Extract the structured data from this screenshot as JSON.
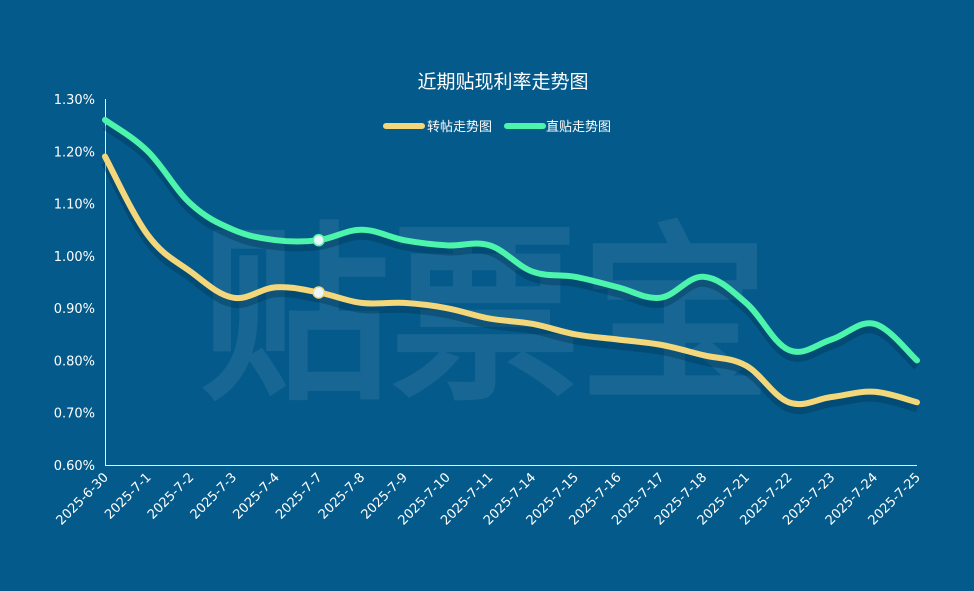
{
  "colors": {
    "background": "#045a8a",
    "transfer_line": "#f4d77a",
    "direct_line": "#4cf5ab",
    "axis_text": "#ffffff"
  },
  "watermark": "贴票宝",
  "chart_data": {
    "type": "line",
    "title": "近期贴现利率走势图",
    "xlabel": "",
    "ylabel": "",
    "ylim": [
      0.6,
      1.3
    ],
    "y_ticks": [
      "0.60%",
      "0.70%",
      "0.80%",
      "0.90%",
      "1.00%",
      "1.10%",
      "1.20%",
      "1.30%"
    ],
    "y_tick_values": [
      0.6,
      0.7,
      0.8,
      0.9,
      1.0,
      1.1,
      1.2,
      1.3
    ],
    "grid": false,
    "legend_position": "top-center",
    "categories": [
      "2025-6-30",
      "2025-7-1",
      "2025-7-2",
      "2025-7-3",
      "2025-7-4",
      "2025-7-7",
      "2025-7-8",
      "2025-7-9",
      "2025-7-10",
      "2025-7-11",
      "2025-7-14",
      "2025-7-15",
      "2025-7-16",
      "2025-7-17",
      "2025-7-18",
      "2025-7-21",
      "2025-7-22",
      "2025-7-23",
      "2025-7-24",
      "2025-7-25"
    ],
    "series": [
      {
        "name": "转帖走势图",
        "color": "#f4d77a",
        "values": [
          1.19,
          1.04,
          0.97,
          0.92,
          0.94,
          0.93,
          0.91,
          0.91,
          0.9,
          0.88,
          0.87,
          0.85,
          0.84,
          0.83,
          0.81,
          0.79,
          0.72,
          0.73,
          0.74,
          0.72
        ]
      },
      {
        "name": "直贴走势图",
        "color": "#4cf5ab",
        "values": [
          1.26,
          1.2,
          1.1,
          1.05,
          1.03,
          1.03,
          1.05,
          1.03,
          1.02,
          1.02,
          0.97,
          0.96,
          0.94,
          0.92,
          0.96,
          0.91,
          0.82,
          0.84,
          0.87,
          0.8
        ]
      }
    ],
    "highlight_index": 5
  }
}
